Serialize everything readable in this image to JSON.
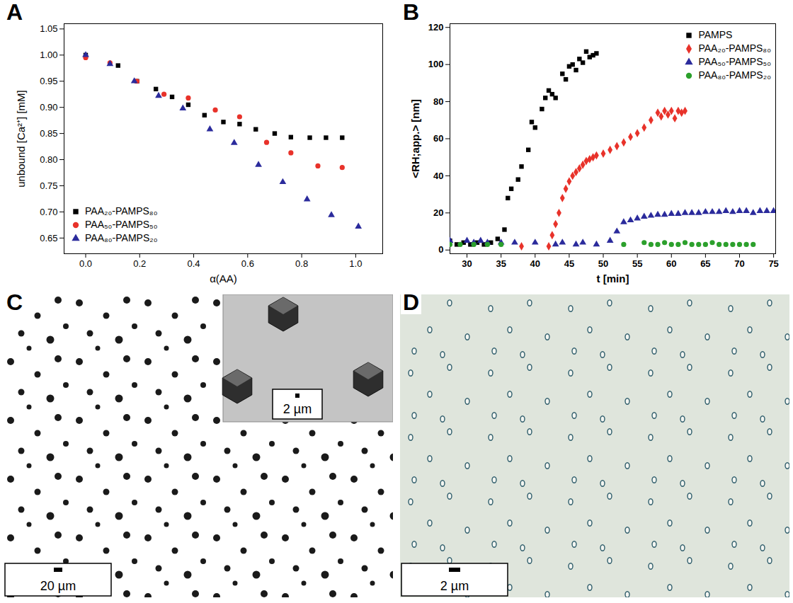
{
  "chart_data": [
    {
      "panel": "A",
      "type": "scatter",
      "x_label": "α(AA)",
      "y_label": "unbound [Ca²⁺] [mM]",
      "xlim": [
        -0.08,
        1.1
      ],
      "ylim": [
        0.62,
        1.06
      ],
      "xticks": [
        {
          "value": 0,
          "label": "0.0"
        },
        0.2,
        0.4,
        0.6,
        0.8,
        {
          "value": 1,
          "label": "1.0"
        }
      ],
      "yticks": [
        0.65,
        {
          "value": 0.7,
          "label": "0.70"
        },
        0.75,
        {
          "value": 0.8,
          "label": "0.80"
        },
        0.85,
        {
          "value": 0.9,
          "label": "0.90"
        },
        0.95,
        {
          "value": 1,
          "label": "1.00"
        },
        1.05
      ],
      "legend": "bottom-left",
      "series": [
        {
          "name": "PAA₂₀-PAMPS₈₀",
          "color": "#000000",
          "marker": "square",
          "x": [
            0,
            0.12,
            0.19,
            0.26,
            0.32,
            0.38,
            0.44,
            0.51,
            0.57,
            0.63,
            0.7,
            0.76,
            0.83,
            0.89,
            0.95
          ],
          "values": [
            1.0,
            0.98,
            0.95,
            0.935,
            0.92,
            0.905,
            0.885,
            0.872,
            0.868,
            0.858,
            0.85,
            0.843,
            0.842,
            0.842,
            0.842
          ]
        },
        {
          "name": "PAA₅₀-PAMPS₅₀",
          "color": "#e8322a",
          "marker": "circle",
          "x": [
            0,
            0.09,
            0.19,
            0.29,
            0.38,
            0.48,
            0.57,
            0.67,
            0.76,
            0.86,
            0.95
          ],
          "values": [
            0.995,
            0.985,
            0.95,
            0.925,
            0.918,
            0.895,
            0.882,
            0.833,
            0.813,
            0.788,
            0.785
          ]
        },
        {
          "name": "PAA₈₀-PAMPS₂₀",
          "color": "#2b2b9c",
          "marker": "triangle",
          "x": [
            0,
            0.09,
            0.18,
            0.27,
            0.36,
            0.46,
            0.55,
            0.64,
            0.73,
            0.82,
            0.91,
            1.01
          ],
          "values": [
            1.0,
            0.983,
            0.95,
            0.922,
            0.898,
            0.858,
            0.832,
            0.79,
            0.757,
            0.724,
            0.694,
            0.672
          ]
        }
      ]
    },
    {
      "panel": "B",
      "type": "scatter",
      "x_label": "t [min]",
      "y_label": "<RH;app.> [nm]",
      "xlim": [
        27.5,
        75.3
      ],
      "ylim": [
        -2,
        122
      ],
      "xticks": [
        30,
        35,
        40,
        45,
        50,
        55,
        60,
        65,
        70,
        75
      ],
      "yticks": [
        0,
        20,
        40,
        60,
        80,
        100,
        120
      ],
      "legend": "top-right",
      "series": [
        {
          "name": "PAMPS",
          "color": "#000000",
          "marker": "square",
          "x": [
            27.5,
            28.5,
            29.5,
            30.5,
            31.5,
            32.5,
            33.5,
            34.5,
            35.5,
            36,
            36.5,
            37.5,
            38,
            39,
            39.5,
            40,
            41,
            41.5,
            42,
            42.5,
            43,
            44,
            44.5,
            45,
            45.5,
            46,
            46.5,
            47,
            47.5,
            48,
            48.5,
            49
          ],
          "values": [
            5,
            3,
            4,
            3,
            4,
            3,
            4,
            6,
            11,
            28,
            33,
            38,
            45,
            54,
            69,
            66,
            76,
            82,
            86,
            84,
            82,
            95,
            92,
            99,
            100,
            97,
            103,
            101,
            107,
            104,
            105,
            106
          ]
        },
        {
          "name": "PAA₂₀-PAMPS₈₀",
          "color": "#e8322a",
          "marker": "diamond",
          "x": [
            38,
            42,
            42.5,
            43,
            43.5,
            44,
            44.5,
            45,
            45.5,
            46,
            46.5,
            47,
            47.5,
            48,
            48.5,
            49,
            50,
            51,
            52,
            53,
            54,
            55,
            56,
            57,
            58,
            58.5,
            59,
            59.5,
            60,
            60.5,
            61,
            61.5,
            62
          ],
          "values": [
            2,
            2,
            8,
            14,
            20,
            28,
            33,
            37,
            40,
            42,
            44,
            46,
            48,
            49,
            50,
            51,
            52,
            54,
            56,
            58,
            61,
            63,
            66,
            70,
            74,
            72,
            75,
            73,
            75,
            71,
            75,
            74,
            75
          ]
        },
        {
          "name": "PAA₅₀-PAMPS₅₀",
          "color": "#2b2b9c",
          "marker": "triangle",
          "x": [
            27.5,
            30,
            31,
            32,
            33,
            35,
            37,
            40,
            43,
            44,
            46,
            47,
            49,
            51,
            52,
            53,
            54,
            55,
            56,
            57,
            58,
            59,
            60,
            61,
            62,
            63,
            64,
            65,
            66,
            67,
            68,
            69,
            70,
            71,
            72,
            73,
            74,
            75
          ],
          "values": [
            5,
            5,
            4,
            5,
            4,
            4,
            4,
            4,
            3,
            4,
            3,
            4,
            3,
            5,
            10,
            15,
            16,
            17,
            18,
            18.5,
            19,
            19,
            19.5,
            19.5,
            20,
            20,
            20,
            20.5,
            20.5,
            20.5,
            21,
            20.5,
            21,
            21,
            20,
            21,
            21,
            21
          ]
        },
        {
          "name": "PAA₈₀-PAMPS₂₀",
          "color": "#2ca02c",
          "marker": "circle",
          "x": [
            27.5,
            29,
            31,
            33,
            35,
            53,
            56,
            57,
            58,
            59,
            60,
            61,
            62,
            63,
            64,
            65,
            66,
            67,
            68,
            69,
            70,
            71,
            72
          ],
          "values": [
            3,
            3,
            3,
            3,
            3,
            3,
            4,
            3,
            3,
            4,
            3,
            3,
            4,
            3,
            3,
            3,
            4,
            3,
            3,
            3,
            3,
            3,
            3
          ]
        }
      ]
    }
  ],
  "images": [
    {
      "panel": "C",
      "scale_bar": "20 µm",
      "inset": {
        "scale_bar": "2 µm"
      }
    },
    {
      "panel": "D",
      "scale_bar": "2 µm"
    }
  ]
}
